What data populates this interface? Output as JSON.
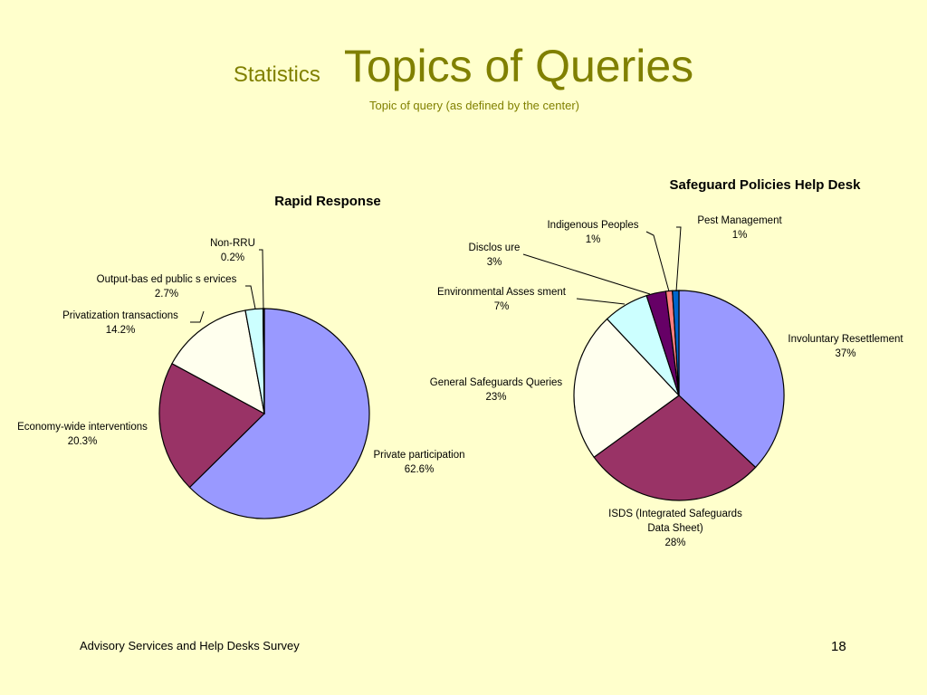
{
  "slide": {
    "title_prefix": "Statistics",
    "title": "Topics of Queries",
    "subtitle": "Topic of query (as defined by the center)",
    "footer": "Advisory Services and Help Desks Survey",
    "page_number": "18"
  },
  "colors": {
    "background": "#ffffcc",
    "title": "#808000"
  },
  "chart_data": [
    {
      "type": "pie",
      "title": "Rapid Response",
      "start": "12 o'clock, clockwise",
      "slices": [
        {
          "label": "Private participation",
          "pct_text": "62.6%",
          "value": 62.6,
          "color": "#9999ff"
        },
        {
          "label": "Economy-wide interventions",
          "pct_text": "20.3%",
          "value": 20.3,
          "color": "#993366"
        },
        {
          "label": "Privatization transactions",
          "pct_text": "14.2%",
          "value": 14.2,
          "color": "#ffffee"
        },
        {
          "label": "Output-based public services",
          "label_text": "Output-bas ed public s ervices",
          "pct_text": "2.7%",
          "value": 2.7,
          "color": "#ccffff"
        },
        {
          "label": "Non-RRU",
          "pct_text": "0.2%",
          "value": 0.2,
          "color": "#660066"
        }
      ]
    },
    {
      "type": "pie",
      "title": "Safeguard Policies Help Desk",
      "start": "12 o'clock, clockwise",
      "slices": [
        {
          "label": "Involuntary Resettlement",
          "pct_text": "37%",
          "value": 37,
          "color": "#9999ff"
        },
        {
          "label": "ISDS (Integrated Safeguards Data Sheet)",
          "label_lines": [
            "ISDS (Integrated Safeguards",
            "Data Sheet)"
          ],
          "pct_text": "28%",
          "value": 28,
          "color": "#993366"
        },
        {
          "label": "General Safeguards Queries",
          "pct_text": "23%",
          "value": 23,
          "color": "#ffffee"
        },
        {
          "label": "Environmental Assessment",
          "label_text": "Environmental Asses sment",
          "pct_text": "7%",
          "value": 7,
          "color": "#ccffff"
        },
        {
          "label": "Disclosure",
          "label_text": "Disclos ure",
          "pct_text": "3%",
          "value": 3,
          "color": "#660066"
        },
        {
          "label": "Indigenous Peoples",
          "pct_text": "1%",
          "value": 1,
          "color": "#ff8080"
        },
        {
          "label": "Pest Management",
          "pct_text": "1%",
          "value": 1,
          "color": "#0066cc"
        }
      ]
    }
  ]
}
